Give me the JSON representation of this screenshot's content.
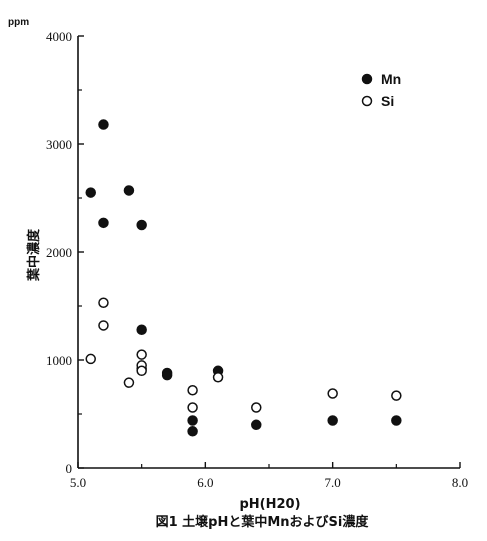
{
  "chart_data": {
    "type": "scatter",
    "caption": "図1 土壌pHと葉中MnおよびSi濃度",
    "xlabel": "pH(H20)",
    "ylabel": "葉中濃度",
    "y_unit": "ppm",
    "xlim": [
      5.0,
      8.0
    ],
    "ylim": [
      0,
      4000
    ],
    "x_ticks": [
      "5.0",
      "6.0",
      "7.0",
      "8.0"
    ],
    "y_ticks": [
      "0",
      "1000",
      "2000",
      "3000",
      "4000"
    ],
    "legend_position": "top-right",
    "grid": false,
    "series": [
      {
        "name": "Mn",
        "marker": "filled-circle",
        "color": "#111111",
        "points": [
          {
            "x": 5.1,
            "y": 2550
          },
          {
            "x": 5.2,
            "y": 3180
          },
          {
            "x": 5.2,
            "y": 2270
          },
          {
            "x": 5.4,
            "y": 2570
          },
          {
            "x": 5.5,
            "y": 2250
          },
          {
            "x": 5.5,
            "y": 1280
          },
          {
            "x": 5.5,
            "y": 920
          },
          {
            "x": 5.7,
            "y": 880
          },
          {
            "x": 5.7,
            "y": 860
          },
          {
            "x": 5.9,
            "y": 440
          },
          {
            "x": 5.9,
            "y": 340
          },
          {
            "x": 6.1,
            "y": 900
          },
          {
            "x": 6.4,
            "y": 400
          },
          {
            "x": 7.0,
            "y": 440
          },
          {
            "x": 7.5,
            "y": 440
          }
        ]
      },
      {
        "name": "Si",
        "marker": "open-circle",
        "color": "#111111",
        "points": [
          {
            "x": 5.1,
            "y": 1010
          },
          {
            "x": 5.2,
            "y": 1530
          },
          {
            "x": 5.2,
            "y": 1320
          },
          {
            "x": 5.4,
            "y": 790
          },
          {
            "x": 5.5,
            "y": 1050
          },
          {
            "x": 5.5,
            "y": 950
          },
          {
            "x": 5.5,
            "y": 900
          },
          {
            "x": 5.9,
            "y": 720
          },
          {
            "x": 5.9,
            "y": 560
          },
          {
            "x": 6.1,
            "y": 840
          },
          {
            "x": 6.4,
            "y": 560
          },
          {
            "x": 7.0,
            "y": 690
          },
          {
            "x": 7.5,
            "y": 670
          }
        ]
      }
    ]
  }
}
